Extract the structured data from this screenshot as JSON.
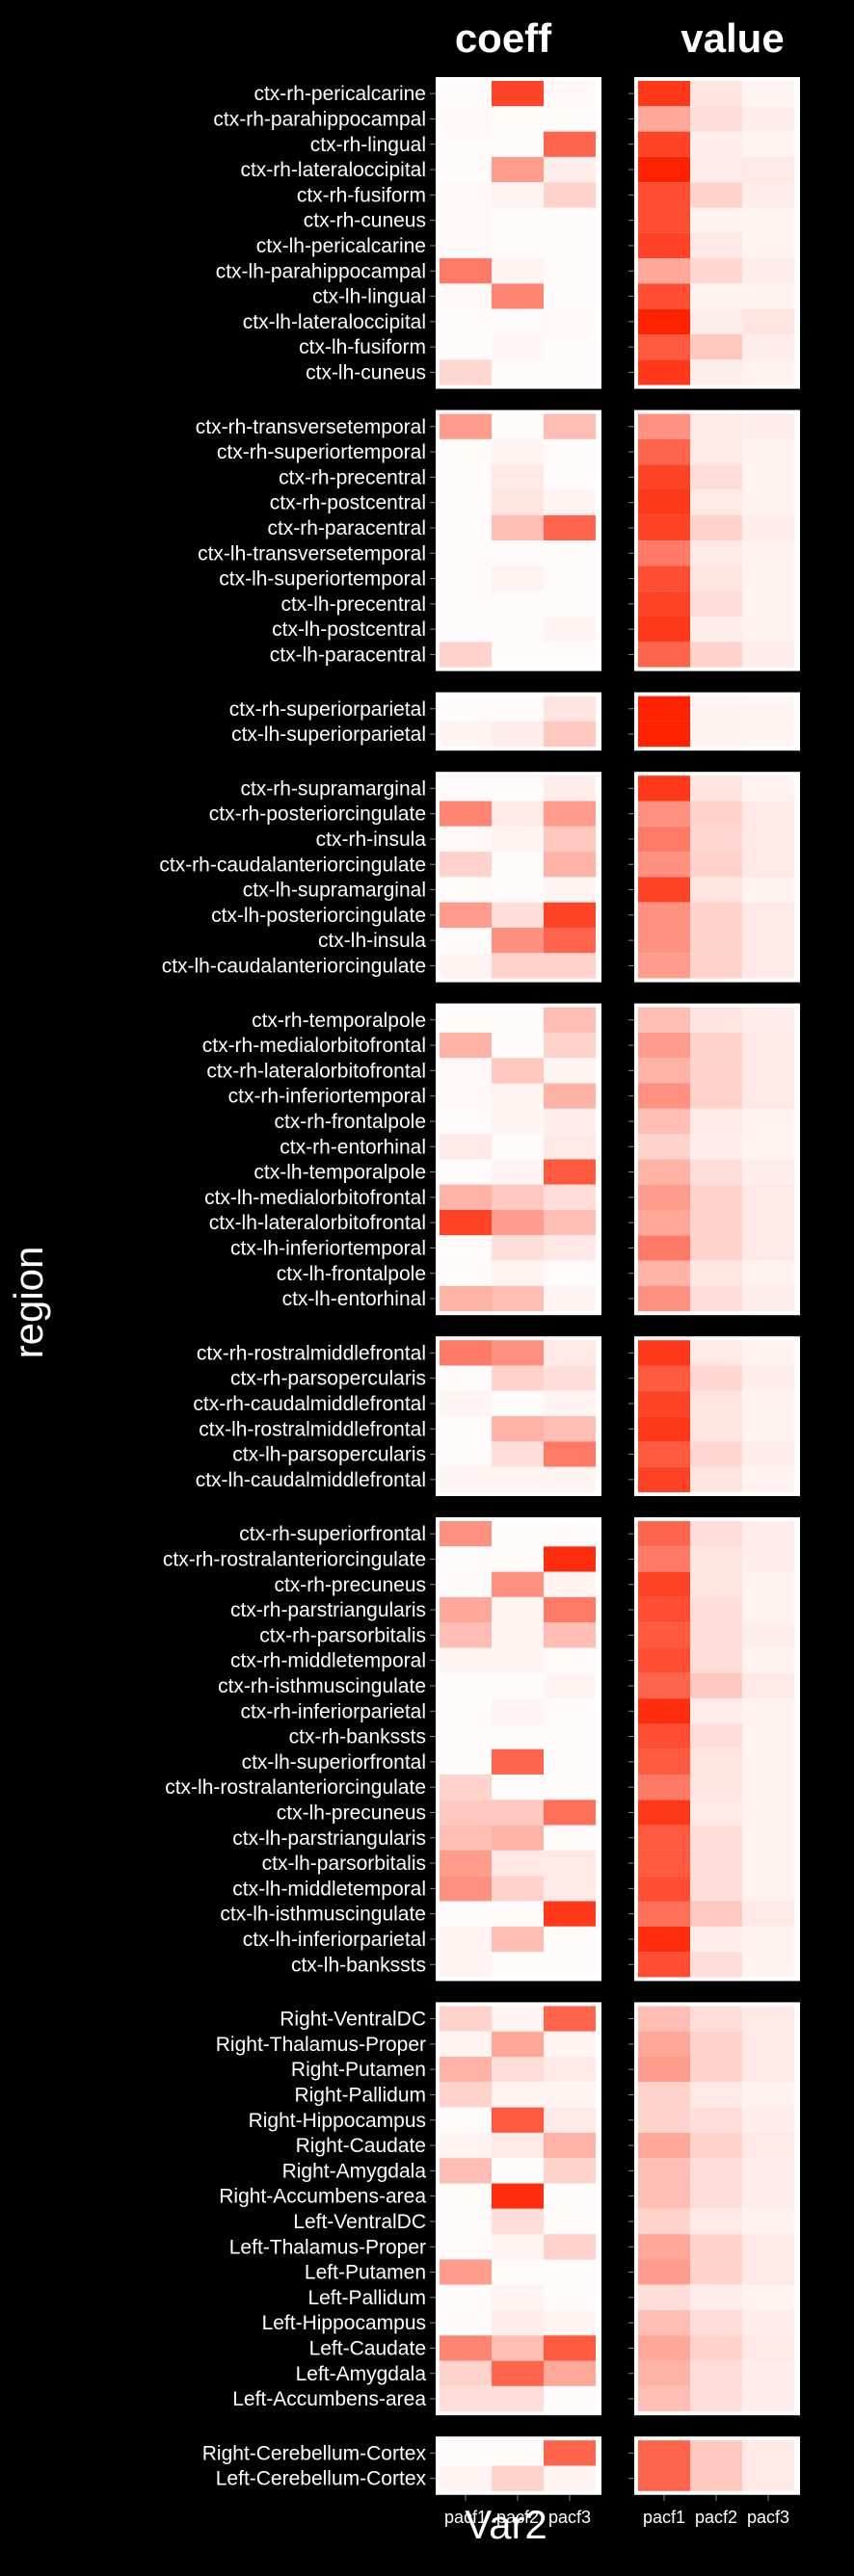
{
  "chart_data": {
    "type": "heatmap",
    "facets": [
      "coeff",
      "value"
    ],
    "xlabel": "Var2",
    "ylabel": "region",
    "columns": [
      "pacf1",
      "pacf2",
      "pacf3"
    ],
    "color_low": "#ffffff",
    "color_high": "#ff2200",
    "scale": [
      0,
      1
    ],
    "groups": [
      {
        "regions": [
          "ctx-rh-pericalcarine",
          "ctx-rh-parahippocampal",
          "ctx-rh-lingual",
          "ctx-rh-lateraloccipital",
          "ctx-rh-fusiform",
          "ctx-rh-cuneus",
          "ctx-lh-pericalcarine",
          "ctx-lh-parahippocampal",
          "ctx-lh-lingual",
          "ctx-lh-lateraloccipital",
          "ctx-lh-fusiform",
          "ctx-lh-cuneus"
        ],
        "coeff": [
          [
            0.02,
            0.85,
            0.03
          ],
          [
            0.03,
            0.02,
            0.02
          ],
          [
            0.02,
            0.02,
            0.7
          ],
          [
            0.02,
            0.45,
            0.08
          ],
          [
            0.03,
            0.05,
            0.2
          ],
          [
            0.03,
            0.02,
            0.02
          ],
          [
            0.03,
            0.02,
            0.02
          ],
          [
            0.6,
            0.05,
            0.02
          ],
          [
            0.03,
            0.55,
            0.02
          ],
          [
            0.02,
            0.02,
            0.03
          ],
          [
            0.02,
            0.04,
            0.02
          ],
          [
            0.18,
            0.02,
            0.02
          ]
        ],
        "value": [
          [
            0.9,
            0.12,
            0.05
          ],
          [
            0.4,
            0.15,
            0.08
          ],
          [
            0.85,
            0.08,
            0.05
          ],
          [
            1.0,
            0.08,
            0.1
          ],
          [
            0.8,
            0.2,
            0.08
          ],
          [
            0.8,
            0.06,
            0.05
          ],
          [
            0.85,
            0.1,
            0.05
          ],
          [
            0.4,
            0.18,
            0.08
          ],
          [
            0.8,
            0.06,
            0.06
          ],
          [
            1.0,
            0.08,
            0.12
          ],
          [
            0.75,
            0.25,
            0.08
          ],
          [
            0.9,
            0.08,
            0.06
          ]
        ]
      },
      {
        "regions": [
          "ctx-rh-transversetemporal",
          "ctx-rh-superiortemporal",
          "ctx-rh-precentral",
          "ctx-rh-postcentral",
          "ctx-rh-paracentral",
          "ctx-lh-transversetemporal",
          "ctx-lh-superiortemporal",
          "ctx-lh-precentral",
          "ctx-lh-postcentral",
          "ctx-lh-paracentral"
        ],
        "coeff": [
          [
            0.45,
            0.02,
            0.3
          ],
          [
            0.02,
            0.05,
            0.02
          ],
          [
            0.02,
            0.1,
            0.02
          ],
          [
            0.02,
            0.12,
            0.05
          ],
          [
            0.02,
            0.3,
            0.7
          ],
          [
            0.02,
            0.02,
            0.02
          ],
          [
            0.02,
            0.05,
            0.02
          ],
          [
            0.02,
            0.02,
            0.02
          ],
          [
            0.02,
            0.02,
            0.05
          ],
          [
            0.2,
            0.02,
            0.02
          ]
        ],
        "value": [
          [
            0.5,
            0.1,
            0.08
          ],
          [
            0.7,
            0.1,
            0.06
          ],
          [
            0.85,
            0.15,
            0.06
          ],
          [
            0.9,
            0.1,
            0.06
          ],
          [
            0.85,
            0.2,
            0.08
          ],
          [
            0.6,
            0.1,
            0.06
          ],
          [
            0.8,
            0.12,
            0.06
          ],
          [
            0.85,
            0.15,
            0.06
          ],
          [
            0.9,
            0.08,
            0.06
          ],
          [
            0.7,
            0.2,
            0.08
          ]
        ]
      },
      {
        "regions": [
          "ctx-rh-superiorparietal",
          "ctx-lh-superiorparietal"
        ],
        "coeff": [
          [
            0.02,
            0.02,
            0.12
          ],
          [
            0.05,
            0.08,
            0.25
          ]
        ],
        "value": [
          [
            1.0,
            0.06,
            0.05
          ],
          [
            1.0,
            0.06,
            0.05
          ]
        ]
      },
      {
        "regions": [
          "ctx-rh-supramarginal",
          "ctx-rh-posteriorcingulate",
          "ctx-rh-insula",
          "ctx-rh-caudalanteriorcingulate",
          "ctx-lh-supramarginal",
          "ctx-lh-posteriorcingulate",
          "ctx-lh-insula",
          "ctx-lh-caudalanteriorcingulate"
        ],
        "coeff": [
          [
            0.02,
            0.02,
            0.08
          ],
          [
            0.55,
            0.1,
            0.45
          ],
          [
            0.03,
            0.05,
            0.25
          ],
          [
            0.2,
            0.02,
            0.35
          ],
          [
            0.02,
            0.02,
            0.05
          ],
          [
            0.45,
            0.15,
            0.85
          ],
          [
            0.02,
            0.5,
            0.7
          ],
          [
            0.05,
            0.2,
            0.2
          ]
        ],
        "value": [
          [
            0.9,
            0.12,
            0.06
          ],
          [
            0.5,
            0.2,
            0.1
          ],
          [
            0.6,
            0.18,
            0.1
          ],
          [
            0.5,
            0.2,
            0.1
          ],
          [
            0.85,
            0.12,
            0.06
          ],
          [
            0.5,
            0.2,
            0.1
          ],
          [
            0.5,
            0.2,
            0.1
          ],
          [
            0.45,
            0.2,
            0.1
          ]
        ]
      },
      {
        "regions": [
          "ctx-rh-temporalpole",
          "ctx-rh-medialorbitofrontal",
          "ctx-rh-lateralorbitofrontal",
          "ctx-rh-inferiortemporal",
          "ctx-rh-frontalpole",
          "ctx-rh-entorhinal",
          "ctx-lh-temporalpole",
          "ctx-lh-medialorbitofrontal",
          "ctx-lh-lateralorbitofrontal",
          "ctx-lh-inferiortemporal",
          "ctx-lh-frontalpole",
          "ctx-lh-entorhinal"
        ],
        "coeff": [
          [
            0.02,
            0.02,
            0.3
          ],
          [
            0.35,
            0.02,
            0.2
          ],
          [
            0.03,
            0.25,
            0.05
          ],
          [
            0.03,
            0.05,
            0.35
          ],
          [
            0.02,
            0.05,
            0.08
          ],
          [
            0.1,
            0.02,
            0.1
          ],
          [
            0.02,
            0.05,
            0.75
          ],
          [
            0.35,
            0.25,
            0.15
          ],
          [
            0.85,
            0.45,
            0.3
          ],
          [
            0.02,
            0.15,
            0.1
          ],
          [
            0.02,
            0.05,
            0.02
          ],
          [
            0.35,
            0.3,
            0.05
          ]
        ],
        "value": [
          [
            0.3,
            0.12,
            0.08
          ],
          [
            0.45,
            0.2,
            0.1
          ],
          [
            0.35,
            0.2,
            0.1
          ],
          [
            0.5,
            0.2,
            0.1
          ],
          [
            0.3,
            0.1,
            0.06
          ],
          [
            0.2,
            0.08,
            0.05
          ],
          [
            0.35,
            0.15,
            0.08
          ],
          [
            0.45,
            0.2,
            0.1
          ],
          [
            0.4,
            0.2,
            0.1
          ],
          [
            0.6,
            0.2,
            0.1
          ],
          [
            0.35,
            0.12,
            0.06
          ],
          [
            0.5,
            0.15,
            0.08
          ]
        ]
      },
      {
        "regions": [
          "ctx-rh-rostralmiddlefrontal",
          "ctx-rh-parsopercularis",
          "ctx-rh-caudalmiddlefrontal",
          "ctx-lh-rostralmiddlefrontal",
          "ctx-lh-parsopercularis",
          "ctx-lh-caudalmiddlefrontal"
        ],
        "coeff": [
          [
            0.6,
            0.5,
            0.1
          ],
          [
            0.02,
            0.2,
            0.15
          ],
          [
            0.05,
            0.02,
            0.05
          ],
          [
            0.02,
            0.35,
            0.3
          ],
          [
            0.02,
            0.15,
            0.6
          ],
          [
            0.05,
            0.05,
            0.05
          ]
        ],
        "value": [
          [
            0.9,
            0.1,
            0.06
          ],
          [
            0.75,
            0.18,
            0.08
          ],
          [
            0.85,
            0.12,
            0.06
          ],
          [
            0.9,
            0.12,
            0.06
          ],
          [
            0.75,
            0.18,
            0.08
          ],
          [
            0.85,
            0.12,
            0.06
          ]
        ]
      },
      {
        "regions": [
          "ctx-rh-superiorfrontal",
          "ctx-rh-rostralanteriorcingulate",
          "ctx-rh-precuneus",
          "ctx-rh-parstriangularis",
          "ctx-rh-parsorbitalis",
          "ctx-rh-middletemporal",
          "ctx-rh-isthmuscingulate",
          "ctx-rh-inferiorparietal",
          "ctx-rh-bankssts",
          "ctx-lh-superiorfrontal",
          "ctx-lh-rostralanteriorcingulate",
          "ctx-lh-precuneus",
          "ctx-lh-parstriangularis",
          "ctx-lh-parsorbitalis",
          "ctx-lh-middletemporal",
          "ctx-lh-isthmuscingulate",
          "ctx-lh-inferiorparietal",
          "ctx-lh-bankssts"
        ],
        "coeff": [
          [
            0.5,
            0.02,
            0.02
          ],
          [
            0.02,
            0.02,
            0.95
          ],
          [
            0.02,
            0.5,
            0.05
          ],
          [
            0.4,
            0.05,
            0.6
          ],
          [
            0.3,
            0.05,
            0.3
          ],
          [
            0.05,
            0.05,
            0.02
          ],
          [
            0.02,
            0.02,
            0.05
          ],
          [
            0.02,
            0.05,
            0.02
          ],
          [
            0.02,
            0.02,
            0.02
          ],
          [
            0.02,
            0.7,
            0.02
          ],
          [
            0.2,
            0.02,
            0.02
          ],
          [
            0.25,
            0.25,
            0.65
          ],
          [
            0.3,
            0.35,
            0.02
          ],
          [
            0.45,
            0.1,
            0.1
          ],
          [
            0.5,
            0.2,
            0.1
          ],
          [
            0.02,
            0.02,
            0.9
          ],
          [
            0.05,
            0.3,
            0.02
          ],
          [
            0.05,
            0.02,
            0.02
          ]
        ],
        "value": [
          [
            0.7,
            0.15,
            0.08
          ],
          [
            0.6,
            0.12,
            0.08
          ],
          [
            0.85,
            0.12,
            0.06
          ],
          [
            0.8,
            0.15,
            0.06
          ],
          [
            0.75,
            0.15,
            0.08
          ],
          [
            0.8,
            0.15,
            0.06
          ],
          [
            0.7,
            0.25,
            0.1
          ],
          [
            0.95,
            0.08,
            0.06
          ],
          [
            0.8,
            0.15,
            0.06
          ],
          [
            0.75,
            0.12,
            0.06
          ],
          [
            0.6,
            0.12,
            0.06
          ],
          [
            0.9,
            0.1,
            0.06
          ],
          [
            0.75,
            0.15,
            0.06
          ],
          [
            0.75,
            0.15,
            0.06
          ],
          [
            0.8,
            0.15,
            0.06
          ],
          [
            0.65,
            0.25,
            0.1
          ],
          [
            0.95,
            0.08,
            0.06
          ],
          [
            0.8,
            0.15,
            0.06
          ]
        ]
      },
      {
        "regions": [
          "Right-VentralDC",
          "Right-Thalamus-Proper",
          "Right-Putamen",
          "Right-Pallidum",
          "Right-Hippocampus",
          "Right-Caudate",
          "Right-Amygdala",
          "Right-Accumbens-area",
          "Left-VentralDC",
          "Left-Thalamus-Proper",
          "Left-Putamen",
          "Left-Pallidum",
          "Left-Hippocampus",
          "Left-Caudate",
          "Left-Amygdala",
          "Left-Accumbens-area"
        ],
        "coeff": [
          [
            0.2,
            0.05,
            0.7
          ],
          [
            0.05,
            0.4,
            0.05
          ],
          [
            0.35,
            0.15,
            0.1
          ],
          [
            0.2,
            0.05,
            0.05
          ],
          [
            0.02,
            0.75,
            0.1
          ],
          [
            0.05,
            0.1,
            0.35
          ],
          [
            0.3,
            0.02,
            0.2
          ],
          [
            0.02,
            0.95,
            0.02
          ],
          [
            0.02,
            0.15,
            0.02
          ],
          [
            0.02,
            0.05,
            0.2
          ],
          [
            0.45,
            0.02,
            0.02
          ],
          [
            0.02,
            0.05,
            0.02
          ],
          [
            0.02,
            0.08,
            0.05
          ],
          [
            0.55,
            0.3,
            0.75
          ],
          [
            0.2,
            0.7,
            0.4
          ],
          [
            0.15,
            0.15,
            0.02
          ]
        ],
        "value": [
          [
            0.3,
            0.15,
            0.1
          ],
          [
            0.4,
            0.2,
            0.1
          ],
          [
            0.45,
            0.2,
            0.1
          ],
          [
            0.2,
            0.1,
            0.06
          ],
          [
            0.2,
            0.15,
            0.08
          ],
          [
            0.4,
            0.2,
            0.1
          ],
          [
            0.3,
            0.15,
            0.08
          ],
          [
            0.3,
            0.15,
            0.08
          ],
          [
            0.2,
            0.1,
            0.06
          ],
          [
            0.4,
            0.2,
            0.1
          ],
          [
            0.45,
            0.2,
            0.1
          ],
          [
            0.15,
            0.08,
            0.05
          ],
          [
            0.3,
            0.15,
            0.08
          ],
          [
            0.4,
            0.2,
            0.1
          ],
          [
            0.35,
            0.15,
            0.08
          ],
          [
            0.3,
            0.15,
            0.08
          ]
        ]
      },
      {
        "regions": [
          "Right-Cerebellum-Cortex",
          "Left-Cerebellum-Cortex"
        ],
        "coeff": [
          [
            0.02,
            0.02,
            0.7
          ],
          [
            0.05,
            0.2,
            0.05
          ]
        ],
        "value": [
          [
            0.7,
            0.25,
            0.1
          ],
          [
            0.7,
            0.25,
            0.1
          ]
        ]
      }
    ]
  }
}
